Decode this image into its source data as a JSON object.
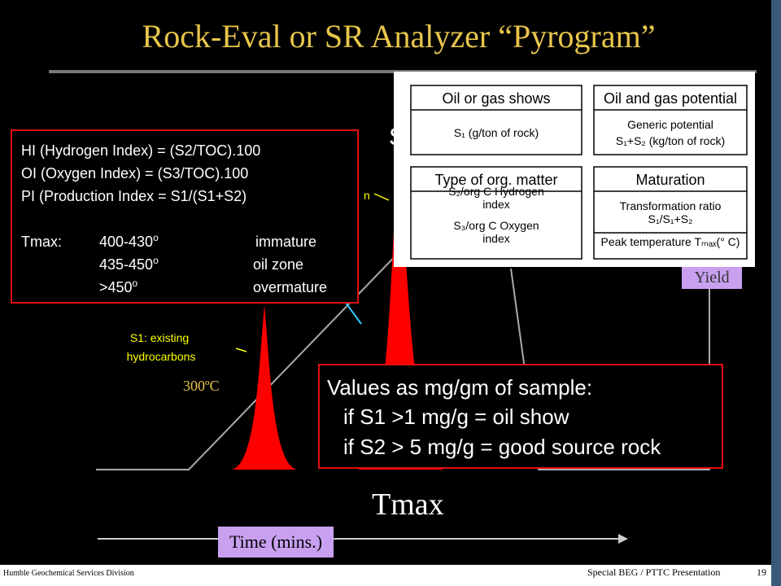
{
  "title": "Rock-Eval or SR Analyzer “Pyrogram”",
  "indices": {
    "lines": [
      "HI (Hydrogen Index)  = (S2/TOC).100",
      "OI (Oxygen Index)      = (S3/TOC).100",
      "PI (Production Index  = S1/(S1+S2)"
    ],
    "tmax_label": "Tmax:",
    "tmax_rows": [
      {
        "range": "400-430",
        "degree": "o",
        "stage": "immature"
      },
      {
        "range": "435-450",
        "degree": "o",
        "stage": "oil zone"
      },
      {
        "range": ">450",
        "degree": "o",
        "stage": "overmature"
      }
    ]
  },
  "inset": {
    "boxes": [
      {
        "title": "Oil or gas shows",
        "lines": [
          "S₁ (g/ton of rock)"
        ]
      },
      {
        "title": "Oil and gas potential",
        "lines": [
          "Generic potential",
          "S₁+S₂ (kg/ton of rock)"
        ]
      },
      {
        "title": "Type of org. matter",
        "lines": [
          "S₂/org C Hydrogen",
          "index",
          "S₃/org C Oxygen",
          "index"
        ]
      },
      {
        "title": "Maturation",
        "lines": [
          "Transformation ratio",
          "S₁/S₁+S₂",
          "Peak temperature Tₘₐₓ(° C)"
        ]
      }
    ]
  },
  "labels": {
    "yield": "Yield",
    "s1": [
      "S1: existing",
      "hydrocarbons"
    ],
    "s2_fragment": "n",
    "hidden_fragment": "S",
    "temperature": "300ºC",
    "tmax": "Tmax",
    "time": "Time (mins.)"
  },
  "values_box": [
    "Values as mg/gm of sample:",
    "if S1 >1 mg/g = oil show",
    "if S2 > 5 mg/g = good source rock"
  ],
  "footer": {
    "left": "Humble Geochemical Services Division",
    "right": "Special BEG / PTTC Presentation",
    "page": "19"
  }
}
